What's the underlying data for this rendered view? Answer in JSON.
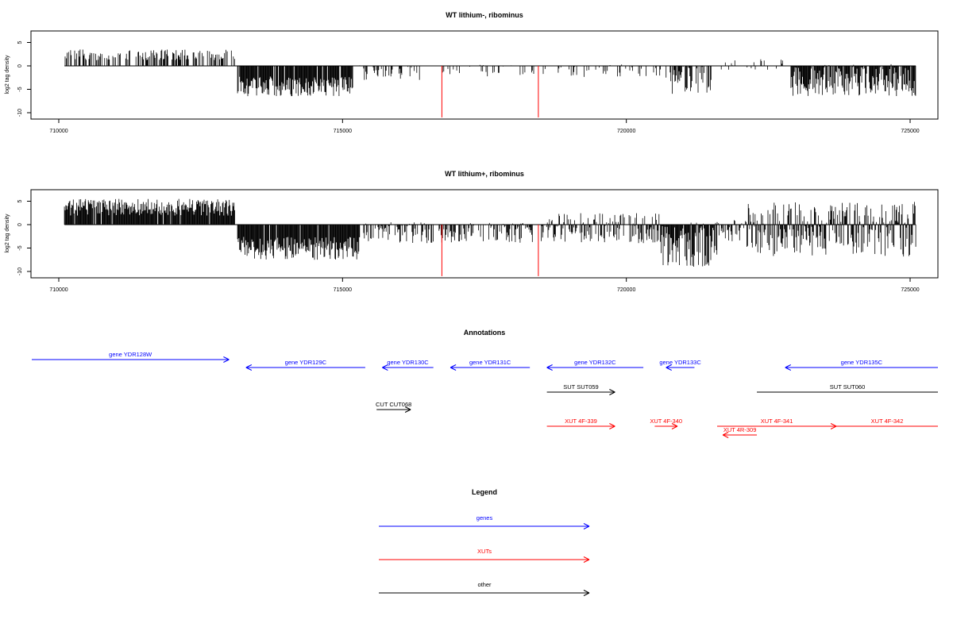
{
  "colors": {
    "axis": "#000000",
    "signal": "#000000",
    "highlight": "#ff0000",
    "gene": "#0000ff",
    "xut": "#ff0000",
    "other": "#000000"
  },
  "chart_data": [
    {
      "type": "bar",
      "title": "WT lithium-, ribominus",
      "ylabel": "log2 tag density",
      "xlim": [
        710000,
        725200
      ],
      "ylim": [
        -11,
        7
      ],
      "x_ticks": [
        710000,
        715000,
        720000,
        725000
      ],
      "y_ticks": [
        5,
        0,
        -5,
        -10
      ],
      "x_tick_labels": [
        "710000",
        "715000",
        "720000",
        "725000"
      ],
      "y_tick_labels": [
        "5",
        "0",
        "-5",
        "-10"
      ],
      "segments": [
        {
          "start": 710100,
          "end": 713100,
          "min": 0,
          "max": 3.5,
          "density": 0.45
        },
        {
          "start": 713150,
          "end": 715200,
          "min": -6.5,
          "max": 0,
          "density": 0.95
        },
        {
          "start": 715300,
          "end": 716600,
          "min": -3,
          "max": 0.4,
          "density": 0.25
        },
        {
          "start": 716700,
          "end": 718400,
          "min": -2.5,
          "max": 0.4,
          "density": 0.25
        },
        {
          "start": 718500,
          "end": 720600,
          "min": -2.5,
          "max": 0.3,
          "density": 0.25
        },
        {
          "start": 720700,
          "end": 721500,
          "min": -6,
          "max": 0.5,
          "density": 0.6
        },
        {
          "start": 721600,
          "end": 722800,
          "min": -1,
          "max": 1.5,
          "density": 0.15
        },
        {
          "start": 722900,
          "end": 725100,
          "min": -6.5,
          "max": 0.4,
          "density": 0.95
        }
      ],
      "highlight_x": [
        716750,
        718450
      ],
      "highlight_y": -11
    },
    {
      "type": "bar",
      "title": "WT lithium+, ribominus",
      "ylabel": "log2 tag density",
      "xlim": [
        710000,
        725200
      ],
      "ylim": [
        -11,
        7
      ],
      "x_ticks": [
        710000,
        715000,
        720000,
        725000
      ],
      "y_ticks": [
        5,
        0,
        -5,
        -10
      ],
      "x_tick_labels": [
        "710000",
        "715000",
        "720000",
        "725000"
      ],
      "y_tick_labels": [
        "5",
        "0",
        "-5",
        "-10"
      ],
      "segments": [
        {
          "start": 710100,
          "end": 713100,
          "min": 0,
          "max": 5.5,
          "density": 0.95
        },
        {
          "start": 713150,
          "end": 715300,
          "min": -7.5,
          "max": 0,
          "density": 0.95
        },
        {
          "start": 715300,
          "end": 716600,
          "min": -4,
          "max": 0.5,
          "density": 0.6
        },
        {
          "start": 716700,
          "end": 718400,
          "min": -4,
          "max": 0.5,
          "density": 0.6
        },
        {
          "start": 718500,
          "end": 720600,
          "min": -4,
          "max": 2.5,
          "density": 0.7
        },
        {
          "start": 720600,
          "end": 721600,
          "min": -9,
          "max": 0.5,
          "density": 0.95
        },
        {
          "start": 721600,
          "end": 722100,
          "min": -4,
          "max": 1.5,
          "density": 0.5
        },
        {
          "start": 722100,
          "end": 725100,
          "min": -7,
          "max": 5,
          "density": 0.95
        }
      ],
      "highlight_x": [
        716750,
        718450
      ],
      "highlight_y": -11
    }
  ],
  "annotations": {
    "title": "Annotations",
    "features": [
      {
        "label": "gene YDR128W",
        "start": 709500,
        "end": 713000,
        "dir": "right",
        "row": 0,
        "kind": "gene"
      },
      {
        "label": "gene YDR129C",
        "start": 713300,
        "end": 715400,
        "dir": "left",
        "row": 1,
        "kind": "gene"
      },
      {
        "label": "gene YDR130C",
        "start": 715700,
        "end": 716600,
        "dir": "left",
        "row": 1,
        "kind": "gene"
      },
      {
        "label": "gene YDR131C",
        "start": 716900,
        "end": 718300,
        "dir": "left",
        "row": 1,
        "kind": "gene"
      },
      {
        "label": "gene YDR132C",
        "start": 718600,
        "end": 720300,
        "dir": "left",
        "row": 1,
        "kind": "gene"
      },
      {
        "label": "gene YDR133C",
        "start": 720700,
        "end": 721200,
        "dir": "left",
        "row": 1,
        "kind": "gene"
      },
      {
        "label": "gene YDR135C",
        "start": 722800,
        "end": 725700,
        "dir": "left",
        "row": 1,
        "kind": "gene"
      },
      {
        "label": "SUT SUT059",
        "start": 718600,
        "end": 719800,
        "dir": "right",
        "row": 2,
        "kind": "other"
      },
      {
        "label": "SUT SUT060",
        "start": 722300,
        "end": 725700,
        "dir": "none",
        "row": 2,
        "kind": "other"
      },
      {
        "label": "CUT CUT068",
        "start": 715600,
        "end": 716200,
        "dir": "right",
        "row": 3,
        "kind": "other"
      },
      {
        "label": "XUT 4F-339",
        "start": 718600,
        "end": 719800,
        "dir": "right",
        "row": 4,
        "kind": "xut"
      },
      {
        "label": "XUT 4F-340",
        "start": 720500,
        "end": 720900,
        "dir": "right",
        "row": 4,
        "kind": "xut"
      },
      {
        "label": "XUT 4F-341",
        "start": 721600,
        "end": 723700,
        "dir": "right",
        "row": 4,
        "kind": "xut"
      },
      {
        "label": "XUT 4F-342",
        "start": 723700,
        "end": 725700,
        "dir": "none",
        "row": 4,
        "kind": "xut"
      },
      {
        "label": "XUT 4R-309",
        "start": 721700,
        "end": 722300,
        "dir": "left",
        "row": 5,
        "kind": "xut"
      }
    ]
  },
  "legend": {
    "title": "Legend",
    "items": [
      {
        "label": "genes",
        "kind": "gene"
      },
      {
        "label": "XUTs",
        "kind": "xut"
      },
      {
        "label": "other",
        "kind": "other"
      }
    ]
  }
}
